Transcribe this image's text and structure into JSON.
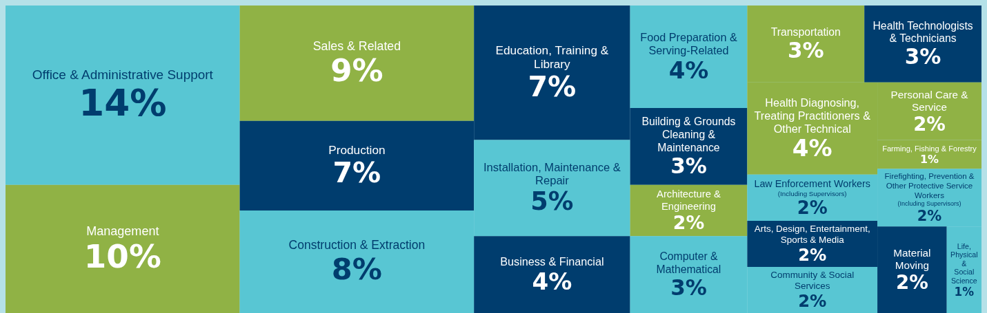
{
  "chart_data": {
    "type": "other",
    "categories": [
      "Office & Administrative Support",
      "Management",
      "Sales & Related",
      "Production",
      "Construction & Extraction",
      "Education, Training & Library",
      "Installation, Maintenance & Repair",
      "Business & Financial",
      "Food Preparation & Serving-Related",
      "Building & Grounds Cleaning & Maintenance",
      "Architecture & Engineering",
      "Computer & Mathematical",
      "Transportation",
      "Health Technologists & Technicians",
      "Health Diagnosing, Treating Practitioners & Other Technical",
      "Law Enforcement Workers (Including Supervisors)",
      "Arts, Design, Entertainment, Sports & Media",
      "Community & Social Services",
      "Personal Care & Service",
      "Farming, Fishing & Forestry",
      "Firefighting, Prevention & Other Protective Service Workers (Including Supervisors)",
      "Material Moving",
      "Life, Physical & Social Science"
    ],
    "values": [
      14,
      10,
      9,
      7,
      8,
      7,
      5,
      4,
      4,
      3,
      2,
      3,
      3,
      3,
      4,
      2,
      2,
      2,
      2,
      1,
      2,
      2,
      1
    ],
    "value_labels": [
      "14%",
      "10%",
      "9%",
      "7%",
      "8%",
      "7%",
      "5%",
      "4%",
      "4%",
      "3%",
      "2%",
      "3%",
      "3%",
      "3%",
      "4%",
      "2%",
      "2%",
      "2%",
      "2%",
      "1%",
      "2%",
      "2%",
      "1%"
    ],
    "colors": [
      "#58c6d3",
      "#90b245",
      "#90b245",
      "#003d6e",
      "#58c6d3",
      "#003d6e",
      "#58c6d3",
      "#003d6e",
      "#58c6d3",
      "#003d6e",
      "#90b245",
      "#58c6d3",
      "#90b245",
      "#003d6e",
      "#90b245",
      "#58c6d3",
      "#003d6e",
      "#58c6d3",
      "#90b245",
      "#90b245",
      "#58c6d3",
      "#003d6e",
      "#58c6d3"
    ]
  }
}
